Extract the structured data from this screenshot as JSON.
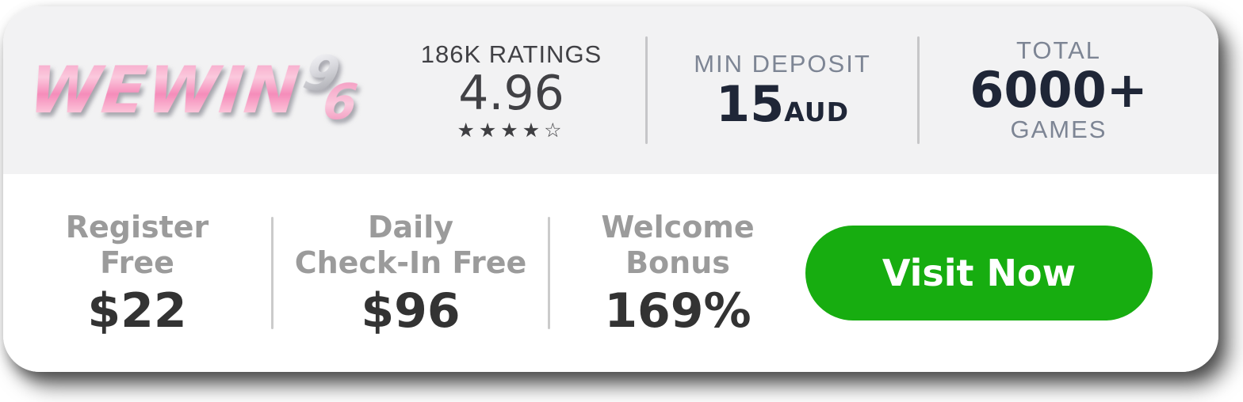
{
  "card": {
    "colors": {
      "accent_green": "#17ad10",
      "brand_pink": "#f494bd",
      "navy": "#1f2637",
      "cool_gray": "#7d8594",
      "dark_gray": "#414145",
      "offer_gray": "#9b9b9b",
      "offer_dark": "#333333",
      "divider_gray": "#c6c6c8"
    },
    "logo": {
      "name": "WEWIN96",
      "text": "WEWIN",
      "suffix_top": "9",
      "suffix_bottom": "6"
    },
    "ratings": {
      "label": "186K RATINGS",
      "value": "4.96",
      "stars_filled": 4,
      "stars_total": 5
    },
    "deposit": {
      "label": "MIN DEPOSIT",
      "value": "15",
      "currency": "AUD"
    },
    "games": {
      "label_top": "TOTAL",
      "value": "6000+",
      "label_bottom": "GAMES"
    },
    "offers": [
      {
        "label_line1": "Register",
        "label_line2": "Free",
        "value": "$22"
      },
      {
        "label_line1": "Daily",
        "label_line2": "Check-In Free",
        "value": "$96"
      },
      {
        "label_line1": "Welcome",
        "label_line2": "Bonus",
        "value": "169%"
      }
    ],
    "cta": {
      "label": "Visit Now"
    }
  }
}
